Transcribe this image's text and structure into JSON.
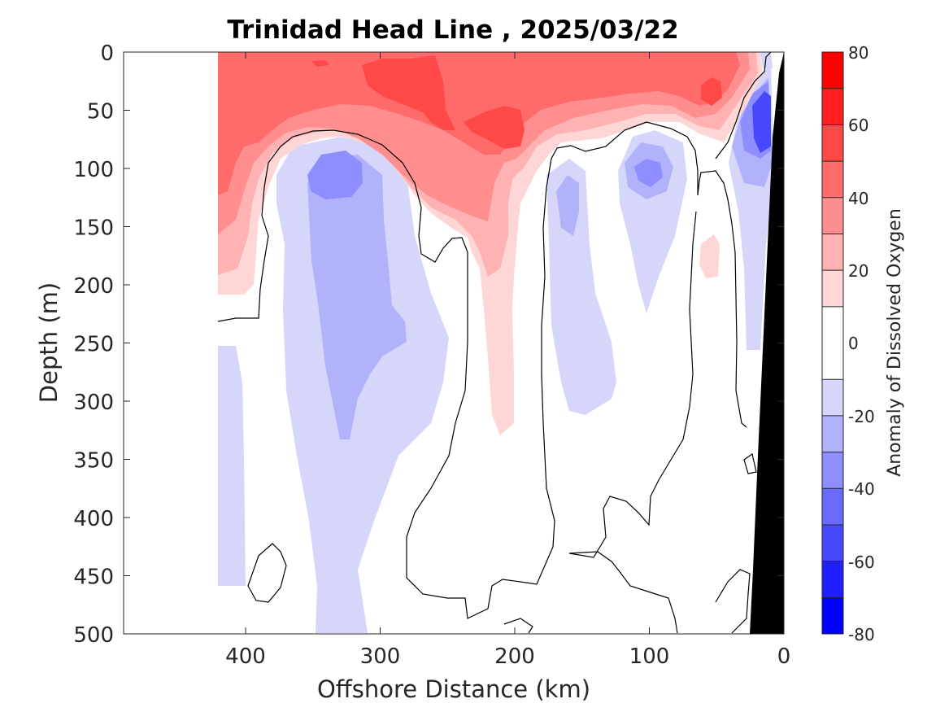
{
  "chart_data": {
    "type": "contour",
    "title": "Trinidad Head Line , 2025/03/22",
    "xlabel": "Offshore Distance (km)",
    "ylabel": "Depth (m)",
    "xlim": [
      490,
      0
    ],
    "ylim": [
      0,
      500
    ],
    "x_ticks": [
      "400",
      "300",
      "200",
      "100",
      "0"
    ],
    "x_tick_values": [
      400,
      300,
      200,
      100,
      0
    ],
    "y_ticks": [
      "0",
      "50",
      "100",
      "150",
      "200",
      "250",
      "300",
      "350",
      "400",
      "450",
      "500"
    ],
    "y_tick_values": [
      0,
      50,
      100,
      150,
      200,
      250,
      300,
      350,
      400,
      450,
      500
    ],
    "colorbar": {
      "label": "Anomaly of Dissolved Oxygen",
      "ticks": [
        "80",
        "60",
        "40",
        "20",
        "0",
        "-20",
        "-40",
        "-60",
        "-80"
      ],
      "tick_values": [
        80,
        60,
        40,
        20,
        0,
        -20,
        -40,
        -60,
        -80
      ],
      "levels": [
        -80,
        -70,
        -60,
        -50,
        -40,
        -30,
        -20,
        -10,
        10,
        20,
        30,
        40,
        50,
        60,
        70,
        80
      ],
      "colors": [
        "#0000ff",
        "#2020ff",
        "#4848ff",
        "#6a6aff",
        "#8e8eff",
        "#b2b2fb",
        "#d6d6fb",
        "#ffffff",
        "#ffd6d6",
        "#ffb2b2",
        "#ff8e8e",
        "#ff6a6a",
        "#ff4848",
        "#ff2020",
        "#ff0000"
      ]
    },
    "features": {
      "zero_contour": "black line",
      "bathymetry": "black fill near 0 km"
    },
    "colors": {
      "bathymetry": "#000000",
      "zero_line": "#000000"
    }
  }
}
